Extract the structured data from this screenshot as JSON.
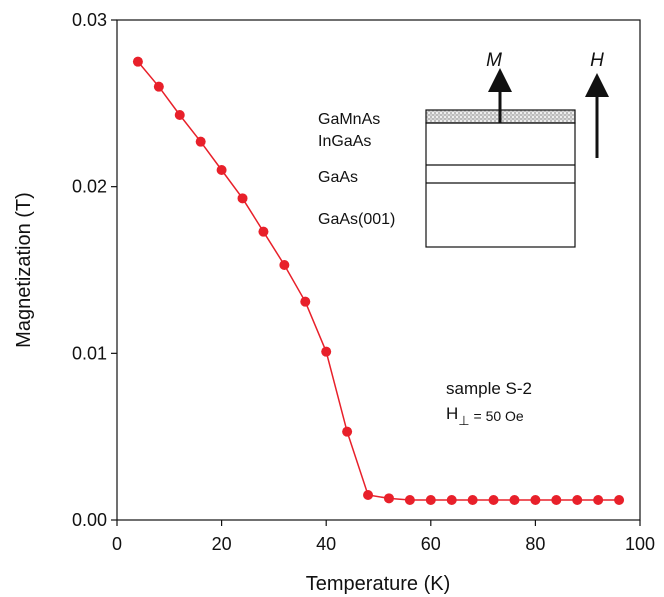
{
  "chart_data": {
    "type": "line",
    "x_label": "Temperature (K)",
    "y_label": "Magnetization (T)",
    "x": [
      4,
      8,
      12,
      16,
      20,
      24,
      28,
      32,
      36,
      40,
      44,
      48,
      52,
      56,
      60,
      64,
      68,
      72,
      76,
      80,
      84,
      88,
      92,
      96
    ],
    "series": [
      {
        "name": "sample S-2",
        "color": "#e8202a",
        "values": [
          0.0275,
          0.026,
          0.0243,
          0.0227,
          0.021,
          0.0193,
          0.0173,
          0.0153,
          0.0131,
          0.0101,
          0.0053,
          0.0015,
          0.0013,
          0.0012,
          0.0012,
          0.0012,
          0.0012,
          0.0012,
          0.0012,
          0.0012,
          0.0012,
          0.0012,
          0.0012,
          0.0012
        ]
      }
    ],
    "xlim": [
      0,
      100
    ],
    "xticks": [
      0,
      20,
      40,
      60,
      80,
      100
    ],
    "ylim": [
      0,
      0.03
    ],
    "yticks": [
      {
        "value": 0,
        "label": "0.00"
      },
      {
        "value": 0.01,
        "label": "0.01"
      },
      {
        "value": 0.02,
        "label": "0.02"
      },
      {
        "value": 0.03,
        "label": "0.03"
      }
    ],
    "annotation": {
      "line1": "sample S-2",
      "h": "H",
      "sub": "⊥",
      "rest": " = 50 Oe"
    },
    "inset": {
      "layers": [
        "GaMnAs",
        "InGaAs",
        "GaAs",
        "GaAs(001)"
      ],
      "m": "M",
      "h": "H"
    }
  }
}
